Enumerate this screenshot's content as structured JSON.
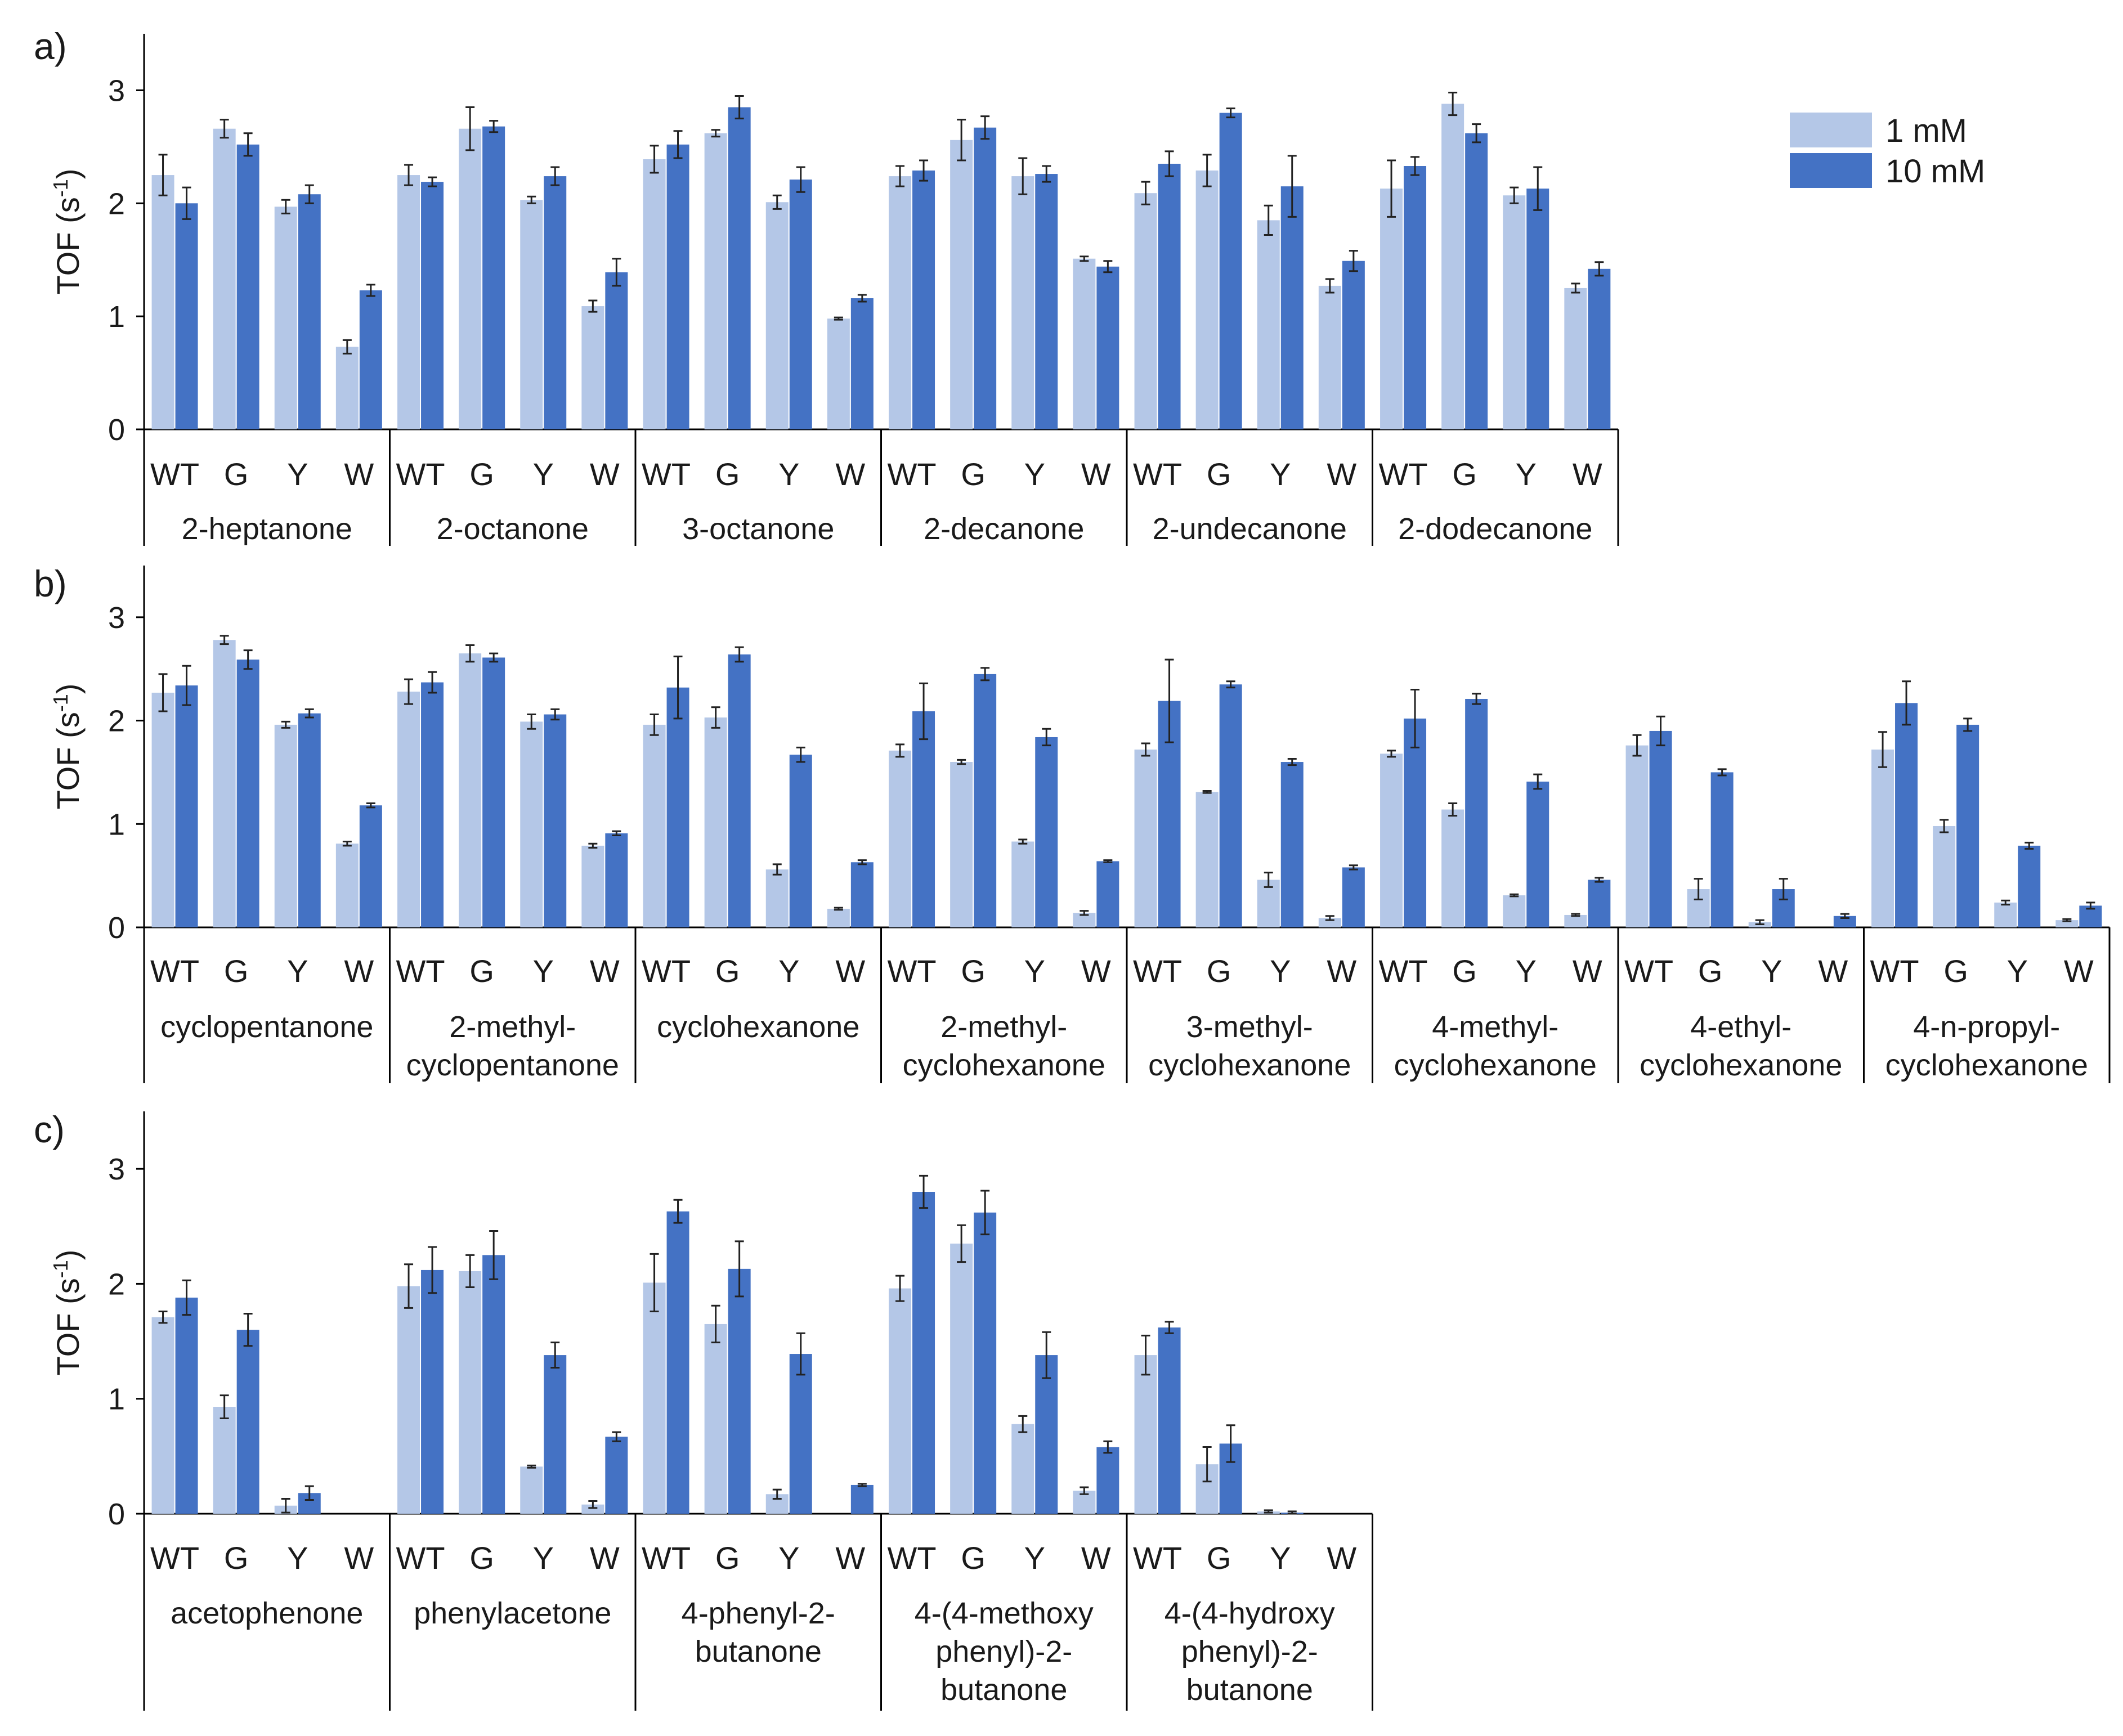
{
  "figure": {
    "legend": [
      {
        "label": "1 mM",
        "color": "#b4c7e7"
      },
      {
        "label": "10 mM",
        "color": "#4472c4"
      }
    ],
    "colors": {
      "light": "#b4c7e7",
      "dark": "#4472c4",
      "axis": "#000000",
      "text": "#1a1a1a"
    }
  },
  "chart_data": [
    {
      "type": "bar",
      "panel_label": "a)",
      "ylabel_main": "TOF (s",
      "ylabel_sup": "-1",
      "ylabel_end": ")",
      "ylim": [
        0,
        3.5
      ],
      "yticks": [
        0,
        1,
        2,
        3
      ],
      "variants": [
        "WT",
        "G",
        "Y",
        "W"
      ],
      "series_names": [
        "1 mM",
        "10 mM"
      ],
      "groups": [
        {
          "label_lines": [
            "2-heptanone"
          ],
          "values_1mM": [
            2.25,
            2.66,
            1.97,
            0.73
          ],
          "err_1mM": [
            0.18,
            0.08,
            0.06,
            0.06
          ],
          "values_10mM": [
            2.0,
            2.52,
            2.08,
            1.23
          ],
          "err_10mM": [
            0.14,
            0.1,
            0.08,
            0.05
          ]
        },
        {
          "label_lines": [
            "2-octanone"
          ],
          "values_1mM": [
            2.25,
            2.66,
            2.03,
            1.09
          ],
          "err_1mM": [
            0.09,
            0.19,
            0.03,
            0.05
          ],
          "values_10mM": [
            2.19,
            2.68,
            2.24,
            1.39
          ],
          "err_10mM": [
            0.04,
            0.05,
            0.08,
            0.12
          ]
        },
        {
          "label_lines": [
            "3-octanone"
          ],
          "values_1mM": [
            2.39,
            2.62,
            2.01,
            0.98
          ],
          "err_1mM": [
            0.12,
            0.03,
            0.06,
            0.01
          ],
          "values_10mM": [
            2.52,
            2.85,
            2.21,
            1.16
          ],
          "err_10mM": [
            0.12,
            0.1,
            0.11,
            0.03
          ]
        },
        {
          "label_lines": [
            "2-decanone"
          ],
          "values_1mM": [
            2.24,
            2.56,
            2.24,
            1.51
          ],
          "err_1mM": [
            0.09,
            0.18,
            0.16,
            0.02
          ],
          "values_10mM": [
            2.29,
            2.67,
            2.26,
            1.44
          ],
          "err_10mM": [
            0.09,
            0.1,
            0.07,
            0.05
          ]
        },
        {
          "label_lines": [
            "2-undecanone"
          ],
          "values_1mM": [
            2.09,
            2.29,
            1.85,
            1.27
          ],
          "err_1mM": [
            0.1,
            0.14,
            0.13,
            0.06
          ],
          "values_10mM": [
            2.35,
            2.8,
            2.15,
            1.49
          ],
          "err_10mM": [
            0.11,
            0.04,
            0.27,
            0.09
          ]
        },
        {
          "label_lines": [
            "2-dodecanone"
          ],
          "values_1mM": [
            2.13,
            2.88,
            2.07,
            1.25
          ],
          "err_1mM": [
            0.25,
            0.1,
            0.07,
            0.04
          ],
          "values_10mM": [
            2.33,
            2.62,
            2.13,
            1.42
          ],
          "err_10mM": [
            0.08,
            0.08,
            0.19,
            0.06
          ]
        }
      ]
    },
    {
      "type": "bar",
      "panel_label": "b)",
      "ylabel_main": "TOF (s",
      "ylabel_sup": "-1",
      "ylabel_end": ")",
      "ylim": [
        0,
        3.5
      ],
      "yticks": [
        0,
        1,
        2,
        3
      ],
      "variants": [
        "WT",
        "G",
        "Y",
        "W"
      ],
      "series_names": [
        "1 mM",
        "10 mM"
      ],
      "groups": [
        {
          "label_lines": [
            "cyclopentanone"
          ],
          "values_1mM": [
            2.27,
            2.78,
            1.96,
            0.81
          ],
          "err_1mM": [
            0.18,
            0.04,
            0.03,
            0.02
          ],
          "values_10mM": [
            2.34,
            2.59,
            2.07,
            1.18
          ],
          "err_10mM": [
            0.19,
            0.09,
            0.04,
            0.02
          ]
        },
        {
          "label_lines": [
            "2-methyl-",
            "cyclopentanone"
          ],
          "values_1mM": [
            2.28,
            2.65,
            1.99,
            0.79
          ],
          "err_1mM": [
            0.12,
            0.08,
            0.07,
            0.02
          ],
          "values_10mM": [
            2.37,
            2.61,
            2.06,
            0.91
          ],
          "err_10mM": [
            0.1,
            0.04,
            0.05,
            0.02
          ]
        },
        {
          "label_lines": [
            "cyclohexanone"
          ],
          "values_1mM": [
            1.96,
            2.03,
            0.56,
            0.18
          ],
          "err_1mM": [
            0.1,
            0.1,
            0.05,
            0.01
          ],
          "values_10mM": [
            2.32,
            2.64,
            1.67,
            0.63
          ],
          "err_10mM": [
            0.3,
            0.07,
            0.07,
            0.02
          ]
        },
        {
          "label_lines": [
            "2-methyl-",
            "cyclohexanone"
          ],
          "values_1mM": [
            1.71,
            1.6,
            0.83,
            0.14
          ],
          "err_1mM": [
            0.06,
            0.02,
            0.02,
            0.02
          ],
          "values_10mM": [
            2.09,
            2.45,
            1.84,
            0.64
          ],
          "err_10mM": [
            0.27,
            0.06,
            0.08,
            0.01
          ]
        },
        {
          "label_lines": [
            "3-methyl-",
            "cyclohexanone"
          ],
          "values_1mM": [
            1.72,
            1.31,
            0.46,
            0.09
          ],
          "err_1mM": [
            0.06,
            0.01,
            0.07,
            0.02
          ],
          "values_10mM": [
            2.19,
            2.35,
            1.6,
            0.58
          ],
          "err_10mM": [
            0.4,
            0.03,
            0.03,
            0.02
          ]
        },
        {
          "label_lines": [
            "4-methyl-",
            "cyclohexanone"
          ],
          "values_1mM": [
            1.68,
            1.14,
            0.31,
            0.12
          ],
          "err_1mM": [
            0.03,
            0.06,
            0.01,
            0.01
          ],
          "values_10mM": [
            2.02,
            2.21,
            1.41,
            0.46
          ],
          "err_10mM": [
            0.28,
            0.05,
            0.07,
            0.02
          ]
        },
        {
          "label_lines": [
            "4-ethyl-",
            "cyclohexanone"
          ],
          "values_1mM": [
            1.76,
            0.37,
            0.05,
            0.0
          ],
          "err_1mM": [
            0.1,
            0.1,
            0.02,
            0.0
          ],
          "values_10mM": [
            1.9,
            1.5,
            0.37,
            0.11
          ],
          "err_10mM": [
            0.14,
            0.03,
            0.1,
            0.02
          ]
        },
        {
          "label_lines": [
            "4-n-propyl-",
            "cyclohexanone"
          ],
          "values_1mM": [
            1.72,
            0.98,
            0.24,
            0.07
          ],
          "err_1mM": [
            0.17,
            0.06,
            0.02,
            0.01
          ],
          "values_10mM": [
            2.17,
            1.96,
            0.79,
            0.21
          ],
          "err_10mM": [
            0.21,
            0.06,
            0.03,
            0.03
          ]
        }
      ]
    },
    {
      "type": "bar",
      "panel_label": "c)",
      "ylabel_main": "TOF (s",
      "ylabel_sup": "-1",
      "ylabel_end": ")",
      "ylim": [
        0,
        3.5
      ],
      "yticks": [
        0,
        1,
        2,
        3
      ],
      "variants": [
        "WT",
        "G",
        "Y",
        "W"
      ],
      "series_names": [
        "1 mM",
        "10 mM"
      ],
      "groups": [
        {
          "label_lines": [
            "acetophenone"
          ],
          "values_1mM": [
            1.71,
            0.93,
            0.07,
            0.0
          ],
          "err_1mM": [
            0.05,
            0.1,
            0.06,
            0.0
          ],
          "values_10mM": [
            1.88,
            1.6,
            0.18,
            0.0
          ],
          "err_10mM": [
            0.15,
            0.14,
            0.06,
            0.0
          ]
        },
        {
          "label_lines": [
            "phenylacetone"
          ],
          "values_1mM": [
            1.98,
            2.11,
            0.41,
            0.08
          ],
          "err_1mM": [
            0.19,
            0.14,
            0.01,
            0.03
          ],
          "values_10mM": [
            2.12,
            2.25,
            1.38,
            0.67
          ],
          "err_10mM": [
            0.2,
            0.21,
            0.11,
            0.04
          ]
        },
        {
          "label_lines": [
            "4-phenyl-2-",
            "butanone"
          ],
          "values_1mM": [
            2.01,
            1.65,
            0.17,
            0.0
          ],
          "err_1mM": [
            0.25,
            0.16,
            0.04,
            0.0
          ],
          "values_10mM": [
            2.63,
            2.13,
            1.39,
            0.25
          ],
          "err_10mM": [
            0.1,
            0.24,
            0.18,
            0.01
          ]
        },
        {
          "label_lines": [
            "4-(4-methoxy",
            "phenyl)-2-",
            "butanone"
          ],
          "values_1mM": [
            1.96,
            2.35,
            0.78,
            0.2
          ],
          "err_1mM": [
            0.11,
            0.16,
            0.07,
            0.03
          ],
          "values_10mM": [
            2.8,
            2.62,
            1.38,
            0.58
          ],
          "err_10mM": [
            0.14,
            0.19,
            0.2,
            0.05
          ]
        },
        {
          "label_lines": [
            "4-(4-hydroxy",
            "phenyl)-2-",
            "butanone"
          ],
          "values_1mM": [
            1.38,
            0.43,
            0.02,
            0.0
          ],
          "err_1mM": [
            0.17,
            0.15,
            0.01,
            0.0
          ],
          "values_10mM": [
            1.62,
            0.61,
            0.01,
            0.0
          ],
          "err_10mM": [
            0.05,
            0.16,
            0.01,
            0.0
          ]
        }
      ]
    }
  ]
}
